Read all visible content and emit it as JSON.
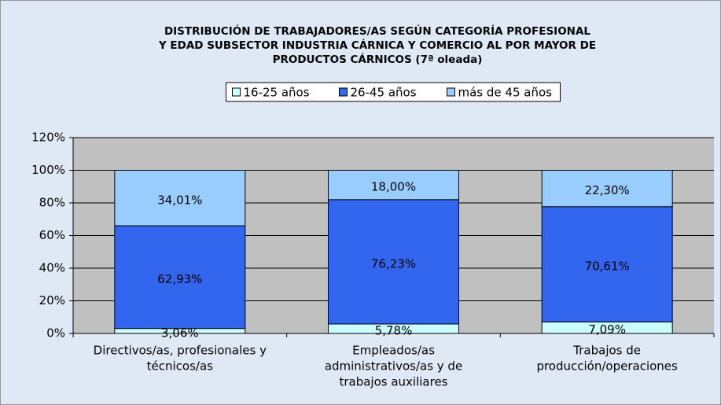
{
  "chart_data": {
    "type": "stacked_bar",
    "title": [
      "DISTRIBUCIÓN DE TRABAJADORES/AS SEGÚN CATEGORÍA PROFESIONAL",
      "Y EDAD SUBSECTOR INDUSTRIA CÁRNICA Y COMERCIO AL POR MAYOR DE",
      "PRODUCTOS CÁRNICOS (7ª oleada)"
    ],
    "categories": [
      [
        "Directivos/as, profesionales y",
        "técnicos/as"
      ],
      [
        "Empleados/as",
        "administrativos/as y de",
        "trabajos auxiliares"
      ],
      [
        "Trabajos de",
        "producción/operaciones"
      ]
    ],
    "series": [
      {
        "name": "16-25 años",
        "color": "#ccffff",
        "values": [
          3.06,
          5.78,
          7.09
        ],
        "value_labels": [
          "3,06%",
          "5,78%",
          "7,09%"
        ]
      },
      {
        "name": "26-45 años",
        "color": "#3366ee",
        "values": [
          62.93,
          76.23,
          70.61
        ],
        "value_labels": [
          "62,93%",
          "76,23%",
          "70,61%"
        ]
      },
      {
        "name": "más de 45 años",
        "color": "#99ccff",
        "values": [
          34.01,
          18.0,
          22.3
        ],
        "value_labels": [
          "34,01%",
          "18,00%",
          "22,30%"
        ]
      }
    ],
    "ylim": [
      0,
      120
    ],
    "yticks": [
      {
        "value": 0,
        "label": "0%"
      },
      {
        "value": 20,
        "label": "20%"
      },
      {
        "value": 40,
        "label": "40%"
      },
      {
        "value": 60,
        "label": "60%"
      },
      {
        "value": 80,
        "label": "80%"
      },
      {
        "value": 100,
        "label": "100%"
      },
      {
        "value": 120,
        "label": "120%"
      }
    ],
    "grid": true,
    "legend": "top"
  }
}
